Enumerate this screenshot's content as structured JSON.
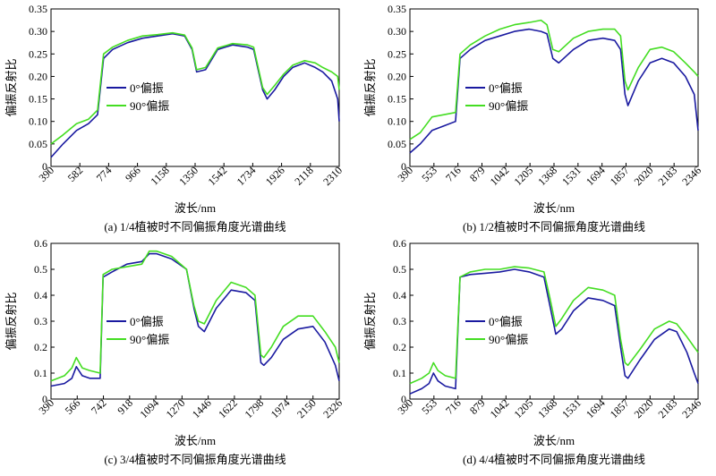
{
  "chart_data": [
    {
      "type": "line",
      "caption": "(a) 1/4植被时不同偏振角度光谱曲线",
      "xlabel": "波长/nm",
      "ylabel": "偏振反射比",
      "xlim": [
        390,
        2310
      ],
      "ylim": [
        0,
        0.35
      ],
      "xticks": [
        390,
        582,
        774,
        966,
        1158,
        1350,
        1542,
        1734,
        1926,
        2118,
        2310
      ],
      "yticks": [
        "0",
        "0.05",
        "0.10",
        "0.15",
        "0.20",
        "0.25",
        "0.30",
        "0.35"
      ],
      "legend_position": "left-middle",
      "series": [
        {
          "name": "0°偏振",
          "color": "#1a1aa0",
          "x": [
            390,
            470,
            560,
            640,
            700,
            740,
            800,
            900,
            1000,
            1100,
            1200,
            1280,
            1330,
            1360,
            1420,
            1500,
            1600,
            1700,
            1740,
            1800,
            1830,
            1880,
            1940,
            2000,
            2080,
            2150,
            2200,
            2260,
            2300,
            2310
          ],
          "y": [
            0.02,
            0.05,
            0.08,
            0.095,
            0.115,
            0.24,
            0.26,
            0.275,
            0.285,
            0.29,
            0.295,
            0.29,
            0.26,
            0.21,
            0.215,
            0.26,
            0.27,
            0.265,
            0.26,
            0.17,
            0.15,
            0.17,
            0.2,
            0.22,
            0.23,
            0.22,
            0.21,
            0.19,
            0.15,
            0.1
          ]
        },
        {
          "name": "90°偏振",
          "color": "#44dd22",
          "x": [
            390,
            470,
            560,
            640,
            700,
            740,
            800,
            900,
            1000,
            1100,
            1200,
            1280,
            1330,
            1360,
            1420,
            1500,
            1600,
            1700,
            1740,
            1800,
            1830,
            1880,
            1940,
            2000,
            2080,
            2150,
            2200,
            2260,
            2300,
            2310
          ],
          "y": [
            0.05,
            0.07,
            0.095,
            0.105,
            0.125,
            0.25,
            0.265,
            0.28,
            0.29,
            0.293,
            0.297,
            0.292,
            0.263,
            0.215,
            0.22,
            0.263,
            0.273,
            0.27,
            0.265,
            0.175,
            0.16,
            0.18,
            0.205,
            0.225,
            0.235,
            0.23,
            0.22,
            0.21,
            0.2,
            0.17
          ]
        }
      ]
    },
    {
      "type": "line",
      "caption": "(b) 1/2植被时不同偏振角度光谱曲线",
      "xlabel": "波长/nm",
      "ylabel": "偏振反射比",
      "xlim": [
        390,
        2346
      ],
      "ylim": [
        0,
        0.35
      ],
      "xticks": [
        390,
        553,
        716,
        879,
        1042,
        1205,
        1368,
        1531,
        1694,
        1857,
        2020,
        2183,
        2346
      ],
      "yticks": [
        "0",
        "0.05",
        "0.10",
        "0.15",
        "0.20",
        "0.25",
        "0.30",
        "0.35"
      ],
      "legend_position": "left-middle",
      "series": [
        {
          "name": "0°偏振",
          "color": "#1a1aa0",
          "x": [
            390,
            460,
            540,
            620,
            700,
            730,
            800,
            900,
            1000,
            1100,
            1200,
            1280,
            1320,
            1360,
            1400,
            1500,
            1600,
            1700,
            1780,
            1820,
            1850,
            1870,
            1940,
            2020,
            2100,
            2180,
            2260,
            2320,
            2346
          ],
          "y": [
            0.03,
            0.05,
            0.08,
            0.09,
            0.1,
            0.24,
            0.26,
            0.28,
            0.29,
            0.3,
            0.305,
            0.3,
            0.295,
            0.24,
            0.23,
            0.26,
            0.28,
            0.285,
            0.28,
            0.26,
            0.16,
            0.135,
            0.19,
            0.23,
            0.24,
            0.23,
            0.2,
            0.16,
            0.08
          ]
        },
        {
          "name": "90°偏振",
          "color": "#44dd22",
          "x": [
            390,
            460,
            540,
            620,
            700,
            730,
            800,
            900,
            1000,
            1100,
            1200,
            1280,
            1320,
            1360,
            1400,
            1500,
            1600,
            1700,
            1780,
            1820,
            1850,
            1870,
            1940,
            2020,
            2100,
            2180,
            2260,
            2320,
            2346
          ],
          "y": [
            0.06,
            0.075,
            0.11,
            0.115,
            0.12,
            0.25,
            0.27,
            0.29,
            0.305,
            0.315,
            0.32,
            0.325,
            0.315,
            0.26,
            0.255,
            0.285,
            0.3,
            0.305,
            0.305,
            0.29,
            0.19,
            0.17,
            0.22,
            0.26,
            0.265,
            0.255,
            0.23,
            0.21,
            0.2
          ]
        }
      ]
    },
    {
      "type": "line",
      "caption": "(c) 3/4植被时不同偏振角度光谱曲线",
      "xlabel": "波长/nm",
      "ylabel": "偏振反射比",
      "xlim": [
        390,
        2326
      ],
      "ylim": [
        0,
        0.6
      ],
      "xticks": [
        390,
        566,
        742,
        918,
        1094,
        1270,
        1446,
        1622,
        1798,
        1974,
        2150,
        2326
      ],
      "yticks": [
        "0",
        "0.1",
        "0.2",
        "0.3",
        "0.4",
        "0.5",
        "0.6"
      ],
      "legend_position": "left-middle",
      "series": [
        {
          "name": "0°偏振",
          "color": "#1a1aa0",
          "x": [
            390,
            480,
            530,
            560,
            600,
            650,
            720,
            740,
            800,
            900,
            1000,
            1050,
            1100,
            1200,
            1300,
            1350,
            1380,
            1420,
            1500,
            1600,
            1700,
            1760,
            1800,
            1820,
            1870,
            1950,
            2050,
            2150,
            2230,
            2300,
            2326
          ],
          "y": [
            0.05,
            0.06,
            0.08,
            0.125,
            0.09,
            0.08,
            0.08,
            0.47,
            0.49,
            0.52,
            0.53,
            0.56,
            0.56,
            0.54,
            0.5,
            0.35,
            0.28,
            0.26,
            0.35,
            0.42,
            0.41,
            0.38,
            0.14,
            0.13,
            0.16,
            0.23,
            0.27,
            0.28,
            0.22,
            0.13,
            0.07
          ]
        },
        {
          "name": "90°偏振",
          "color": "#44dd22",
          "x": [
            390,
            480,
            530,
            560,
            600,
            650,
            720,
            740,
            800,
            900,
            1000,
            1050,
            1100,
            1200,
            1300,
            1350,
            1380,
            1420,
            1500,
            1600,
            1700,
            1760,
            1800,
            1820,
            1870,
            1950,
            2050,
            2150,
            2230,
            2300,
            2326
          ],
          "y": [
            0.07,
            0.09,
            0.12,
            0.16,
            0.12,
            0.11,
            0.1,
            0.48,
            0.5,
            0.51,
            0.52,
            0.57,
            0.57,
            0.55,
            0.5,
            0.36,
            0.3,
            0.29,
            0.38,
            0.45,
            0.43,
            0.4,
            0.17,
            0.16,
            0.2,
            0.28,
            0.32,
            0.32,
            0.26,
            0.2,
            0.14
          ]
        }
      ]
    },
    {
      "type": "line",
      "caption": "(d) 4/4植被时不同偏振角度光谱曲线",
      "xlabel": "波长/nm",
      "ylabel": "偏振反射比",
      "xlim": [
        390,
        2346
      ],
      "ylim": [
        0,
        0.6
      ],
      "xticks": [
        390,
        553,
        716,
        879,
        1042,
        1205,
        1368,
        1531,
        1694,
        1857,
        2020,
        2183,
        2346
      ],
      "yticks": [
        "0",
        "0.1",
        "0.2",
        "0.3",
        "0.4",
        "0.5",
        "0.6"
      ],
      "legend_position": "left-middle",
      "series": [
        {
          "name": "0°偏振",
          "color": "#1a1aa0",
          "x": [
            390,
            470,
            520,
            550,
            580,
            630,
            700,
            730,
            800,
            900,
            1000,
            1100,
            1200,
            1300,
            1340,
            1380,
            1420,
            1500,
            1600,
            1700,
            1780,
            1820,
            1850,
            1870,
            1950,
            2050,
            2150,
            2200,
            2270,
            2320,
            2346
          ],
          "y": [
            0.02,
            0.04,
            0.06,
            0.1,
            0.07,
            0.05,
            0.04,
            0.47,
            0.48,
            0.485,
            0.49,
            0.5,
            0.49,
            0.47,
            0.36,
            0.25,
            0.27,
            0.34,
            0.39,
            0.38,
            0.36,
            0.2,
            0.09,
            0.08,
            0.15,
            0.23,
            0.27,
            0.26,
            0.18,
            0.1,
            0.06
          ]
        },
        {
          "name": "90°偏振",
          "color": "#44dd22",
          "x": [
            390,
            470,
            520,
            550,
            580,
            630,
            700,
            730,
            800,
            900,
            1000,
            1100,
            1200,
            1300,
            1340,
            1380,
            1420,
            1500,
            1600,
            1700,
            1780,
            1820,
            1850,
            1870,
            1950,
            2050,
            2150,
            2200,
            2270,
            2320,
            2346
          ],
          "y": [
            0.06,
            0.08,
            0.1,
            0.14,
            0.11,
            0.09,
            0.08,
            0.47,
            0.49,
            0.5,
            0.5,
            0.51,
            0.505,
            0.49,
            0.39,
            0.28,
            0.31,
            0.38,
            0.43,
            0.42,
            0.4,
            0.23,
            0.14,
            0.13,
            0.19,
            0.27,
            0.3,
            0.29,
            0.24,
            0.2,
            0.18
          ]
        }
      ]
    }
  ]
}
